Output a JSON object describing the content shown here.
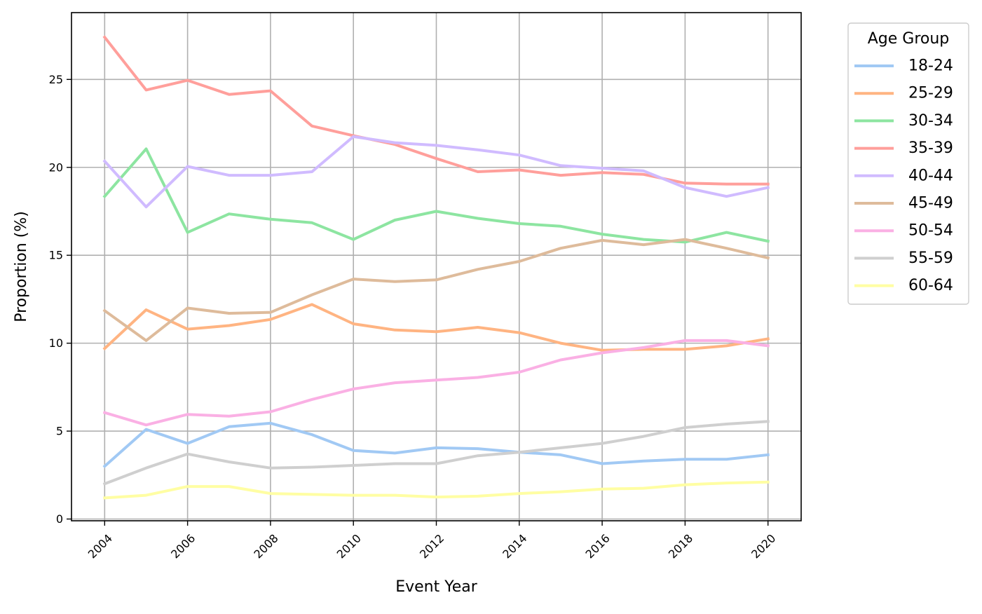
{
  "chart_data": {
    "type": "line",
    "title": "",
    "xlabel": "Event Year",
    "ylabel": "Proportion (%)",
    "x": [
      2004,
      2005,
      2006,
      2007,
      2008,
      2009,
      2010,
      2011,
      2012,
      2013,
      2014,
      2015,
      2016,
      2017,
      2018,
      2019,
      2020
    ],
    "xlim": [
      2003.2,
      2020.8
    ],
    "ylim": [
      -0.1,
      28.8
    ],
    "x_ticks": [
      2004,
      2006,
      2008,
      2010,
      2012,
      2014,
      2016,
      2018,
      2020
    ],
    "x_tick_labels": [
      "2004",
      "2006",
      "2008",
      "2010",
      "2012",
      "2014",
      "2016",
      "2018",
      "2020"
    ],
    "x_tick_rotation_deg": 45,
    "y_ticks": [
      0,
      5,
      10,
      15,
      20,
      25
    ],
    "y_tick_labels": [
      "0",
      "5",
      "10",
      "15",
      "20",
      "25"
    ],
    "grid": true,
    "legend": {
      "title": "Age Group",
      "placement": "outside-right-top"
    },
    "series": [
      {
        "name": "18-24",
        "color": "#a1c9f4",
        "values": [
          3.0,
          5.1,
          4.3,
          5.25,
          5.45,
          4.8,
          3.9,
          3.75,
          4.05,
          4.0,
          3.8,
          3.65,
          3.15,
          3.3,
          3.4,
          3.4,
          3.65
        ]
      },
      {
        "name": "25-29",
        "color": "#ffb482",
        "values": [
          9.7,
          11.9,
          10.8,
          11.0,
          11.35,
          12.2,
          11.1,
          10.75,
          10.65,
          10.9,
          10.6,
          10.0,
          9.6,
          9.65,
          9.65,
          9.85,
          10.25
        ]
      },
      {
        "name": "30-34",
        "color": "#8de5a1",
        "values": [
          18.35,
          21.05,
          16.3,
          17.35,
          17.05,
          16.85,
          15.9,
          17.0,
          17.5,
          17.1,
          16.8,
          16.65,
          16.2,
          15.9,
          15.75,
          16.3,
          15.8
        ]
      },
      {
        "name": "35-39",
        "color": "#ff9f9b",
        "values": [
          27.4,
          24.4,
          24.95,
          24.15,
          24.35,
          22.35,
          21.8,
          21.3,
          20.5,
          19.75,
          19.85,
          19.55,
          19.7,
          19.6,
          19.1,
          19.05,
          19.05
        ]
      },
      {
        "name": "40-44",
        "color": "#d0bbff",
        "values": [
          20.35,
          17.75,
          20.05,
          19.55,
          19.55,
          19.75,
          21.75,
          21.4,
          21.25,
          21.0,
          20.7,
          20.1,
          19.95,
          19.8,
          18.85,
          18.35,
          18.85
        ]
      },
      {
        "name": "45-49",
        "color": "#debb9b",
        "values": [
          11.85,
          10.15,
          12.0,
          11.7,
          11.75,
          12.75,
          13.65,
          13.5,
          13.6,
          14.2,
          14.65,
          15.4,
          15.85,
          15.6,
          15.9,
          15.4,
          14.85
        ]
      },
      {
        "name": "50-54",
        "color": "#fab0e4",
        "values": [
          6.05,
          5.35,
          5.95,
          5.85,
          6.1,
          6.8,
          7.4,
          7.75,
          7.9,
          8.05,
          8.35,
          9.05,
          9.45,
          9.75,
          10.15,
          10.15,
          9.85
        ]
      },
      {
        "name": "55-59",
        "color": "#cfcfcf",
        "values": [
          2.0,
          2.9,
          3.7,
          3.25,
          2.9,
          2.95,
          3.05,
          3.15,
          3.15,
          3.6,
          3.8,
          4.05,
          4.3,
          4.7,
          5.2,
          5.4,
          5.55
        ]
      },
      {
        "name": "60-64",
        "color": "#fffea3",
        "values": [
          1.2,
          1.35,
          1.85,
          1.85,
          1.45,
          1.4,
          1.35,
          1.35,
          1.25,
          1.3,
          1.45,
          1.55,
          1.7,
          1.75,
          1.95,
          2.05,
          2.1
        ]
      }
    ]
  }
}
